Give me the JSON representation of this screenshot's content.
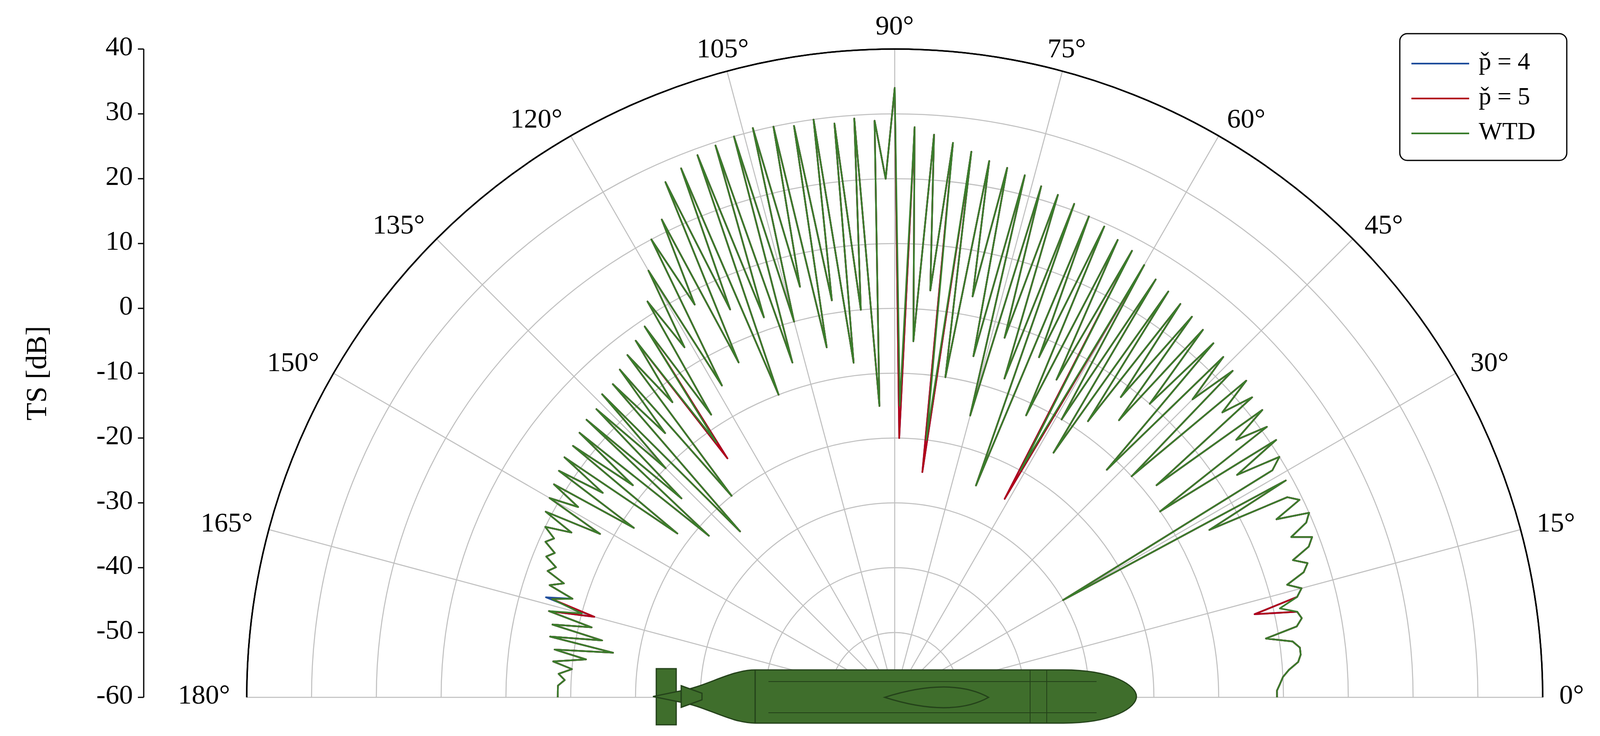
{
  "chart_data": {
    "type": "polar",
    "y_label": "TS [dB]",
    "xlim": [
      0,
      180
    ],
    "xticks": [
      {
        "value": 0,
        "label": "0°"
      },
      {
        "value": 15,
        "label": "15°"
      },
      {
        "value": 30,
        "label": "30°"
      },
      {
        "value": 45,
        "label": "45°"
      },
      {
        "value": 60,
        "label": "60°"
      },
      {
        "value": 75,
        "label": "75°"
      },
      {
        "value": 90,
        "label": "90°"
      },
      {
        "value": 105,
        "label": "105°"
      },
      {
        "value": 120,
        "label": "120°"
      },
      {
        "value": 135,
        "label": "135°"
      },
      {
        "value": 150,
        "label": "150°"
      },
      {
        "value": 165,
        "label": "165°"
      },
      {
        "value": 180,
        "label": "180°"
      }
    ],
    "ylim": [
      -60,
      40
    ],
    "yticks": [
      -60,
      -50,
      -40,
      -30,
      -20,
      -10,
      0,
      10,
      20,
      30,
      40
    ],
    "grid": true,
    "legend": "upper right",
    "x": [
      0,
      1,
      2,
      3,
      4,
      5,
      6,
      7,
      8,
      9,
      10,
      11,
      12,
      13,
      14,
      15,
      16,
      17,
      18,
      19,
      20,
      21,
      22,
      23,
      24,
      25,
      26,
      27,
      28,
      29,
      30,
      31,
      32,
      33,
      34,
      35,
      36,
      37,
      38,
      39,
      40,
      41,
      42,
      43,
      44,
      45,
      46,
      47,
      48,
      49,
      50,
      51,
      52,
      53,
      54,
      55,
      56,
      57,
      58,
      59,
      60,
      61,
      62,
      63,
      64,
      65,
      66,
      67,
      68,
      69,
      70,
      71,
      72,
      73,
      74,
      75,
      76,
      77,
      78,
      79,
      80,
      81,
      82,
      83,
      84,
      85,
      86,
      87,
      88,
      89,
      90,
      91,
      92,
      93,
      94,
      95,
      96,
      97,
      98,
      99,
      100,
      101,
      102,
      103,
      104,
      105,
      106,
      107,
      108,
      109,
      110,
      111,
      112,
      113,
      114,
      115,
      116,
      117,
      118,
      119,
      120,
      121,
      122,
      123,
      124,
      125,
      126,
      127,
      128,
      129,
      130,
      131,
      132,
      133,
      134,
      135,
      136,
      137,
      138,
      139,
      140,
      141,
      142,
      143,
      144,
      145,
      146,
      147,
      148,
      149,
      150,
      151,
      152,
      153,
      154,
      155,
      156,
      157,
      158,
      159,
      160,
      161,
      162,
      163,
      164,
      165,
      166,
      167,
      168,
      169,
      170,
      171,
      172,
      173,
      174,
      175,
      176,
      177,
      178,
      179,
      180
    ],
    "series": [
      {
        "name": "p̌ = 4",
        "color": "#1f4e9c",
        "values": [
          -1,
          -1,
          -0.5,
          0,
          1,
          2.5,
          3,
          3,
          2,
          -2,
          3,
          4,
          3.5,
          -3,
          4,
          5,
          3,
          6,
          7,
          5,
          8,
          9,
          6,
          9,
          10,
          5,
          9.5,
          8,
          -5,
          9,
          -30,
          8,
          10,
          3,
          11,
          -10,
          11,
          6,
          12,
          -8,
          12,
          7,
          13,
          -10,
          12.5,
          5,
          13,
          -12,
          13.5,
          0,
          14,
          -5,
          14.5,
          -2,
          15,
          -8,
          15.5,
          -15,
          16,
          -10,
          17,
          -25,
          18,
          -5,
          18.5,
          -12,
          19.5,
          -3,
          20,
          -25,
          21,
          -8,
          21.5,
          -2,
          22,
          -15,
          23,
          -6,
          23.5,
          3,
          24,
          -10,
          25,
          -25,
          26,
          3,
          27,
          -5,
          28,
          -20,
          34,
          20,
          29,
          -15,
          29.5,
          0,
          29,
          -8,
          30,
          2,
          29.5,
          -5,
          30,
          5,
          30.5,
          0,
          30,
          -6,
          29.5,
          2,
          29,
          -10,
          28,
          5,
          27,
          -3,
          22,
          8,
          20,
          -5,
          16,
          3,
          12,
          -8,
          9,
          -15,
          8,
          -3,
          7,
          -20,
          6,
          -6,
          5,
          -25,
          5,
          -10,
          4,
          -15,
          4,
          -22,
          3.5,
          -8,
          3,
          -18,
          3,
          -5,
          2.5,
          -12,
          2,
          -3,
          1.5,
          -8,
          1,
          -4,
          0,
          -2,
          -1,
          -3,
          -2,
          -4,
          -3,
          -6,
          -4,
          -8,
          -4,
          -12,
          -5,
          -12,
          -6,
          -14,
          -6,
          -16,
          -7,
          -12,
          -7,
          -10,
          -8,
          -9,
          -8,
          -8,
          -8
        ]
      },
      {
        "name": "p̌ = 5",
        "color": "#b2001a",
        "values": [
          -1,
          -1,
          -0.5,
          0,
          1,
          2.5,
          3,
          3,
          2,
          -2,
          3,
          4,
          3.5,
          -3,
          4,
          5,
          3,
          6,
          7,
          5,
          8,
          9,
          6,
          9,
          10,
          5,
          9.5,
          8,
          -5,
          9,
          -30,
          8,
          10,
          3,
          11,
          -10,
          11,
          6,
          12,
          -8,
          12,
          7,
          13,
          -10,
          12.5,
          5,
          13,
          -12,
          13.5,
          0,
          14,
          -5,
          14.5,
          -2,
          15,
          -8,
          15.5,
          -15,
          16,
          -10,
          17,
          -25,
          18,
          -5,
          18.5,
          -12,
          19.5,
          -3,
          20,
          -25,
          21,
          -8,
          21.5,
          -2,
          22,
          -15,
          23,
          -6,
          23.5,
          3,
          24,
          -10,
          25,
          -25,
          26,
          3,
          27,
          -5,
          28,
          -20,
          34,
          20,
          29,
          -15,
          29.5,
          0,
          29,
          -8,
          30,
          2,
          29.5,
          -5,
          30,
          5,
          30.5,
          0,
          30,
          -6,
          29.5,
          2,
          29,
          -10,
          28,
          5,
          27,
          -3,
          22,
          8,
          20,
          -5,
          16,
          3,
          12,
          -8,
          9,
          -15,
          8,
          -3,
          7,
          -20,
          6,
          -6,
          5,
          -25,
          5,
          -10,
          4,
          -15,
          4,
          -22,
          3.5,
          -8,
          3,
          -18,
          3,
          -5,
          2.5,
          -12,
          2,
          -3,
          1.5,
          -8,
          1,
          -4,
          0,
          -2,
          -1,
          -3,
          -2,
          -4,
          -3,
          -6,
          -4,
          -8,
          -5,
          -12,
          -5,
          -12,
          -6,
          -14,
          -6,
          -16,
          -7,
          -12,
          -7,
          -10,
          -8,
          -9,
          -8,
          -8,
          -8
        ]
      },
      {
        "name": "WTD",
        "color": "#3a7d2c",
        "values": [
          -1,
          -1,
          -0.5,
          0,
          1,
          2.5,
          3,
          3,
          2,
          -2,
          3,
          4,
          3.5,
          1,
          4,
          5,
          3,
          6,
          7,
          5,
          8,
          9,
          6,
          9,
          10,
          5,
          9.5,
          8,
          -5,
          9,
          -30,
          8,
          10,
          3,
          11,
          -10,
          11,
          6,
          12,
          -8,
          12,
          7,
          13,
          -10,
          12.5,
          5,
          13,
          -12,
          13.5,
          0,
          14,
          -5,
          14.5,
          -2,
          15,
          -8,
          15.5,
          -15,
          16,
          -10,
          17,
          -20,
          18,
          -5,
          18.5,
          -12,
          19.5,
          -3,
          20,
          -25,
          21,
          -8,
          21.5,
          -2,
          22,
          -15,
          23,
          -6,
          23.5,
          3,
          24,
          -10,
          25,
          -20,
          26,
          3,
          27,
          -5,
          28,
          -15,
          34,
          20,
          29,
          -15,
          29.5,
          0,
          29,
          -8,
          30,
          2,
          29.5,
          -5,
          30,
          5,
          30.5,
          0,
          30,
          -6,
          29.5,
          2,
          29,
          -10,
          28,
          5,
          27,
          -3,
          22,
          8,
          20,
          -5,
          16,
          3,
          12,
          -8,
          9,
          -12,
          8,
          -3,
          7,
          -20,
          6,
          -6,
          5,
          -25,
          5,
          -10,
          4,
          -15,
          4,
          -22,
          3.5,
          -8,
          3,
          -18,
          3,
          -5,
          2.5,
          -12,
          2,
          -3,
          1.5,
          -8,
          1,
          -4,
          0,
          -2,
          -1,
          -3,
          -2,
          -4,
          -3,
          -6,
          -4,
          -8,
          -5,
          -10,
          -5,
          -12,
          -6,
          -14,
          -6,
          -16,
          -7,
          -12,
          -7,
          -10,
          -8,
          -9,
          -8,
          -8,
          -8
        ]
      }
    ]
  }
}
